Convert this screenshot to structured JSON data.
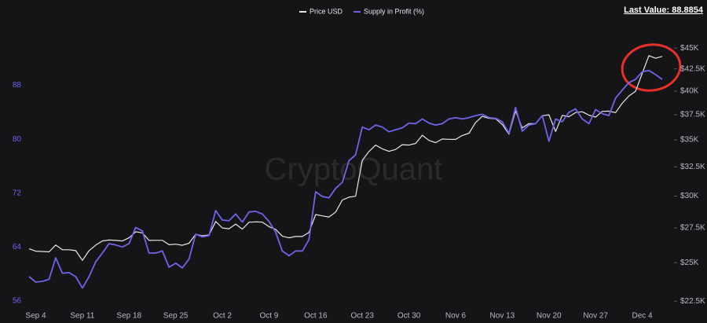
{
  "chart_data": {
    "type": "line",
    "watermark": "CryptoQuant",
    "last_value_label": "Last Value: 88.8854",
    "categories": [
      null,
      "Sep 4",
      null,
      null,
      null,
      null,
      null,
      null,
      "Sep 11",
      null,
      null,
      null,
      null,
      null,
      null,
      "Sep 18",
      null,
      null,
      null,
      null,
      null,
      null,
      "Sep 25",
      null,
      null,
      null,
      null,
      null,
      null,
      "Oct 2",
      null,
      null,
      null,
      null,
      null,
      null,
      "Oct 9",
      null,
      null,
      null,
      null,
      null,
      null,
      "Oct 16",
      null,
      null,
      null,
      null,
      null,
      null,
      "Oct 23",
      null,
      null,
      null,
      null,
      null,
      null,
      "Oct 30",
      null,
      null,
      null,
      null,
      null,
      null,
      "Nov 6",
      null,
      null,
      null,
      null,
      null,
      null,
      "Nov 13",
      null,
      null,
      null,
      null,
      null,
      null,
      "Nov 20",
      null,
      null,
      null,
      null,
      null,
      null,
      "Nov 27",
      null,
      null,
      null,
      null,
      null,
      null,
      "Dec 4",
      null,
      null,
      null
    ],
    "series": [
      {
        "name": "Price USD",
        "color": "#e8e8ea",
        "axis": "y2",
        "values": [
          25970,
          25800,
          25780,
          25750,
          26240,
          25900,
          25900,
          25840,
          25160,
          25840,
          26230,
          26530,
          26600,
          26570,
          26530,
          26760,
          27210,
          27130,
          26570,
          26580,
          26580,
          26260,
          26300,
          26220,
          26370,
          27020,
          26910,
          26970,
          27990,
          27500,
          27430,
          27790,
          27410,
          27930,
          27960,
          27940,
          27590,
          27390,
          26880,
          26760,
          26860,
          26860,
          27160,
          28520,
          28420,
          28330,
          28720,
          29680,
          29910,
          29990,
          33090,
          33900,
          34500,
          34150,
          33910,
          34090,
          34540,
          34500,
          34660,
          35440,
          34940,
          34730,
          35080,
          35050,
          35040,
          35420,
          35640,
          36700,
          37320,
          37130,
          37070,
          36500,
          35540,
          37880,
          36160,
          36590,
          36590,
          37390,
          37480,
          35810,
          37420,
          37290,
          37720,
          37800,
          37450,
          37250,
          37830,
          37860,
          37710,
          38690,
          39470,
          39980,
          41980,
          44080,
          43770,
          43980
        ]
      },
      {
        "name": "Supply in Profit (%)",
        "color": "#6f63e8",
        "values": [
          59.6,
          58.8,
          58.9,
          59.2,
          62.4,
          60.1,
          60.2,
          59.6,
          57.9,
          59.6,
          61.8,
          63.1,
          64.5,
          64.3,
          64.0,
          64.5,
          66.9,
          66.4,
          63.1,
          63.1,
          63.4,
          61.0,
          61.6,
          60.9,
          62.2,
          65.9,
          65.5,
          65.7,
          69.4,
          68.0,
          67.9,
          68.9,
          67.7,
          69.2,
          69.3,
          68.9,
          67.8,
          66.2,
          63.4,
          62.7,
          63.4,
          63.4,
          65.1,
          72.2,
          71.5,
          71.3,
          72.7,
          73.6,
          76.8,
          77.7,
          81.8,
          81.4,
          82.1,
          81.8,
          81.1,
          81.4,
          81.7,
          82.4,
          82.3,
          83.0,
          82.4,
          82.1,
          82.3,
          83.0,
          83.2,
          83.0,
          83.2,
          83.5,
          83.7,
          83.2,
          83.1,
          82.6,
          80.9,
          84.7,
          81.2,
          82.1,
          82.3,
          83.5,
          79.7,
          83.0,
          82.6,
          84.0,
          84.5,
          83.0,
          82.3,
          84.4,
          83.8,
          83.5,
          86.1,
          87.3,
          88.4,
          88.9,
          90.0,
          90.2,
          89.6,
          88.8854
        ]
      }
    ],
    "ylim": [
      54,
      96
    ],
    "yticks": [
      56,
      64,
      72,
      80,
      88
    ],
    "y2lim": [
      21700,
      47100
    ],
    "y2scale": "log",
    "y2ticks": [
      {
        "value": 22500,
        "label": "$22.5K"
      },
      {
        "value": 25000,
        "label": "$25K"
      },
      {
        "value": 27500,
        "label": "$27.5K"
      },
      {
        "value": 30000,
        "label": "$30K"
      },
      {
        "value": 32500,
        "label": "$32.5K"
      },
      {
        "value": 35000,
        "label": "$35K"
      },
      {
        "value": 37500,
        "label": "$37.5K"
      },
      {
        "value": 40000,
        "label": "$40K"
      },
      {
        "value": 42500,
        "label": "$42.5K"
      },
      {
        "value": 45000,
        "label": "$45K"
      }
    ],
    "ytick_color": "#6f63e8",
    "grid": false
  }
}
